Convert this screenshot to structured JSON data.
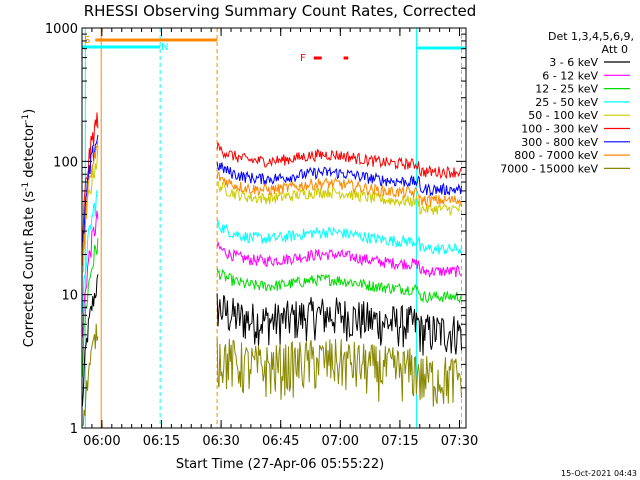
{
  "chart_data": {
    "type": "line",
    "title": "RHESSI Observing Summary Count Rates, Corrected",
    "xlabel": "Start Time (27-Apr-06 05:55:22)",
    "ylabel_main": "Corrected Count Rate (s",
    "ylabel_sup1": "-1",
    "ylabel_mid": " detector",
    "ylabel_sup2": "-1",
    "ylabel_end": ")",
    "y_scale": "log",
    "ylim": [
      1,
      1000
    ],
    "x_range_minutes": [
      "05:55:22",
      "07:32:00"
    ],
    "x_ticks": [
      {
        "t": 300,
        "label": "06:00"
      },
      {
        "t": 1200,
        "label": "06:15"
      },
      {
        "t": 2100,
        "label": "06:30"
      },
      {
        "t": 3000,
        "label": "06:45"
      },
      {
        "t": 3900,
        "label": "07:00"
      },
      {
        "t": 4800,
        "label": "07:15"
      },
      {
        "t": 5700,
        "label": "07:30"
      }
    ],
    "y_ticks": [
      {
        "v": 1,
        "label": "1"
      },
      {
        "v": 10,
        "label": "10"
      },
      {
        "v": 100,
        "label": "100"
      },
      {
        "v": 1000,
        "label": "1000"
      }
    ],
    "legend": {
      "position": "right",
      "header1": "Det 1,3,4,5,6,9,",
      "header2": "Att 0"
    },
    "series": [
      {
        "name": "3 - 6 keV",
        "color": "#000000",
        "base": 5.5
      },
      {
        "name": "6 - 12 keV",
        "color": "#ff00ff",
        "base": 17
      },
      {
        "name": "12 - 25 keV",
        "color": "#00dd00",
        "base": 11
      },
      {
        "name": "25 - 50 keV",
        "color": "#00ffff",
        "base": 25
      },
      {
        "name": "50 - 100 keV",
        "color": "#cccc00",
        "base": 50
      },
      {
        "name": "100 - 300 keV",
        "color": "#ff0000",
        "base": 95
      },
      {
        "name": "300 - 800 keV",
        "color": "#0000ff",
        "base": 70
      },
      {
        "name": "800 - 7000 keV",
        "color": "#ff8800",
        "base": 58
      },
      {
        "name": "7000 - 15000 keV",
        "color": "#888800",
        "base": 2.5
      }
    ],
    "flags": [
      {
        "label": "S",
        "color": "#ff8800"
      },
      {
        "label": "N",
        "color": "#00ffff"
      },
      {
        "label": "F",
        "color": "#ff0000"
      }
    ],
    "footer_date": "15-Oct-2021 04:43"
  }
}
